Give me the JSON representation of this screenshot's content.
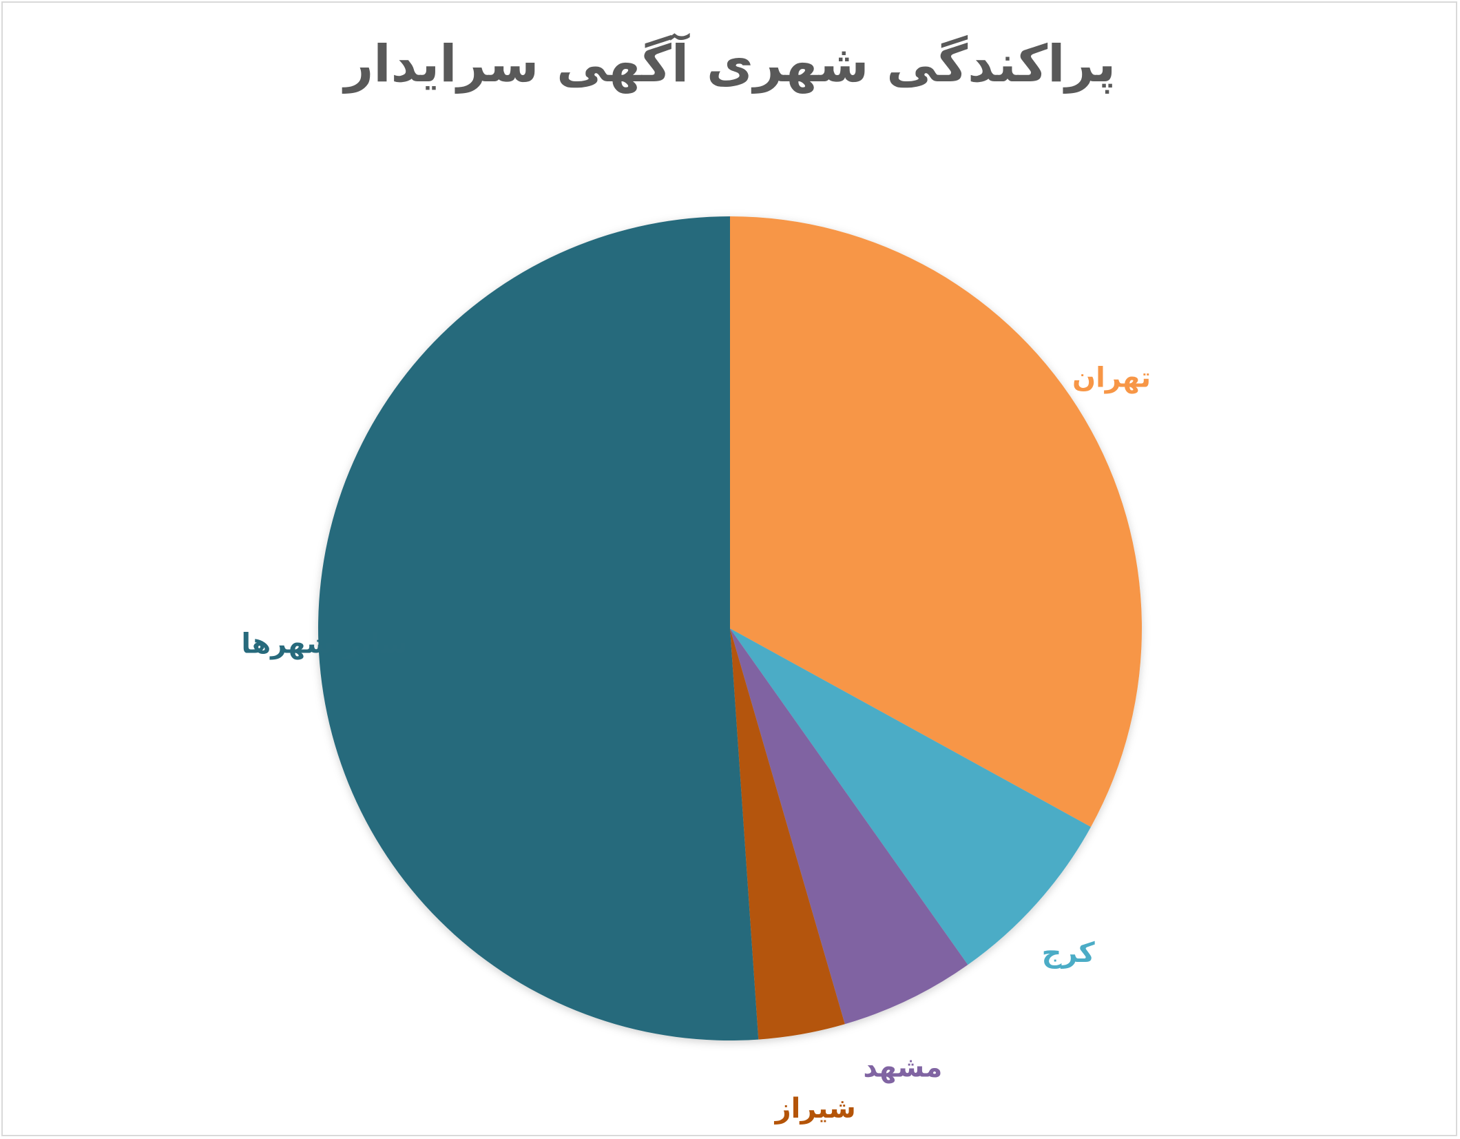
{
  "chart_data": {
    "type": "pie",
    "title": "پراکندگی شهری آگهی سرایدار",
    "start_angle_deg": 0,
    "direction": "clockwise",
    "legend": "none",
    "slices": [
      {
        "name": "تهران",
        "value": 33.0,
        "color": "#F79646"
      },
      {
        "name": "کرج",
        "value": 7.2,
        "color": "#4BACC6"
      },
      {
        "name": "مشهد",
        "value": 5.3,
        "color": "#8064A2"
      },
      {
        "name": "شیراز",
        "value": 3.4,
        "color": "#B45408"
      },
      {
        "name": "سایر شهرها",
        "value": 51.1,
        "color": "#276A7C"
      }
    ]
  }
}
